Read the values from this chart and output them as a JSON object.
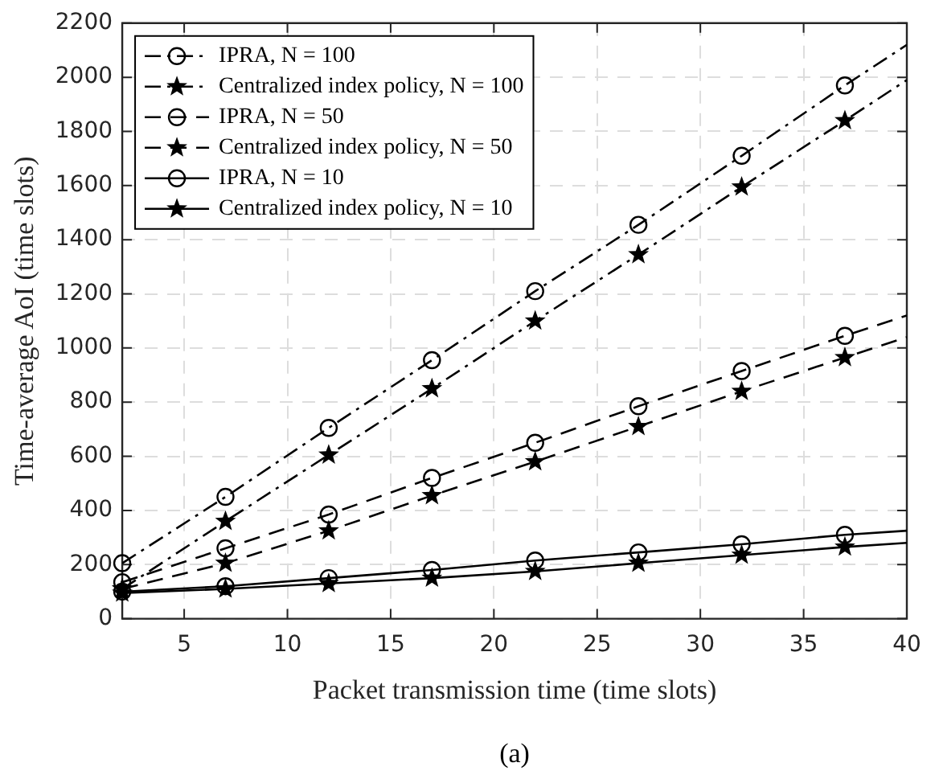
{
  "chart_data": {
    "type": "line",
    "xlabel": "Packet transmission time (time slots)",
    "ylabel": "Time-average AoI (time slots)",
    "x": [
      2,
      7,
      12,
      17,
      22,
      27,
      32,
      37,
      40
    ],
    "series": [
      {
        "name": "IPRA, N = 100",
        "color": "#000000",
        "marker": "circle",
        "line_style": "dashdot",
        "values": [
          205,
          450,
          705,
          955,
          1210,
          1455,
          1710,
          1970,
          2120
        ]
      },
      {
        "name": "Centralized index policy, N = 100",
        "color": "#000000",
        "marker": "star",
        "line_style": "dashdot",
        "values": [
          110,
          360,
          605,
          850,
          1100,
          1345,
          1595,
          1840,
          1990
        ]
      },
      {
        "name": "IPRA, N = 50",
        "color": "#000000",
        "marker": "circle",
        "line_style": "dashed",
        "values": [
          135,
          260,
          385,
          520,
          650,
          785,
          915,
          1045,
          1120
        ]
      },
      {
        "name": "Centralized index policy, N = 50",
        "color": "#000000",
        "marker": "star",
        "line_style": "dashed",
        "values": [
          110,
          205,
          325,
          455,
          580,
          710,
          840,
          965,
          1040
        ]
      },
      {
        "name": "IPRA, N = 10",
        "color": "#000000",
        "marker": "circle",
        "line_style": "solid",
        "values": [
          100,
          120,
          150,
          180,
          215,
          245,
          275,
          310,
          325
        ]
      },
      {
        "name": "Centralized index policy, N = 10",
        "color": "#000000",
        "marker": "star",
        "line_style": "solid",
        "values": [
          95,
          110,
          130,
          150,
          175,
          205,
          235,
          265,
          280
        ]
      }
    ],
    "xlim": [
      2,
      40
    ],
    "xticks": [
      5,
      10,
      15,
      20,
      25,
      30,
      35,
      40
    ],
    "ylim": [
      0,
      2200
    ],
    "yticks": [
      0,
      200,
      400,
      600,
      800,
      1000,
      1200,
      1400,
      1600,
      1800,
      2000,
      2200
    ],
    "grid": true,
    "legend": "top left",
    "annotations": [
      "(a)"
    ]
  }
}
